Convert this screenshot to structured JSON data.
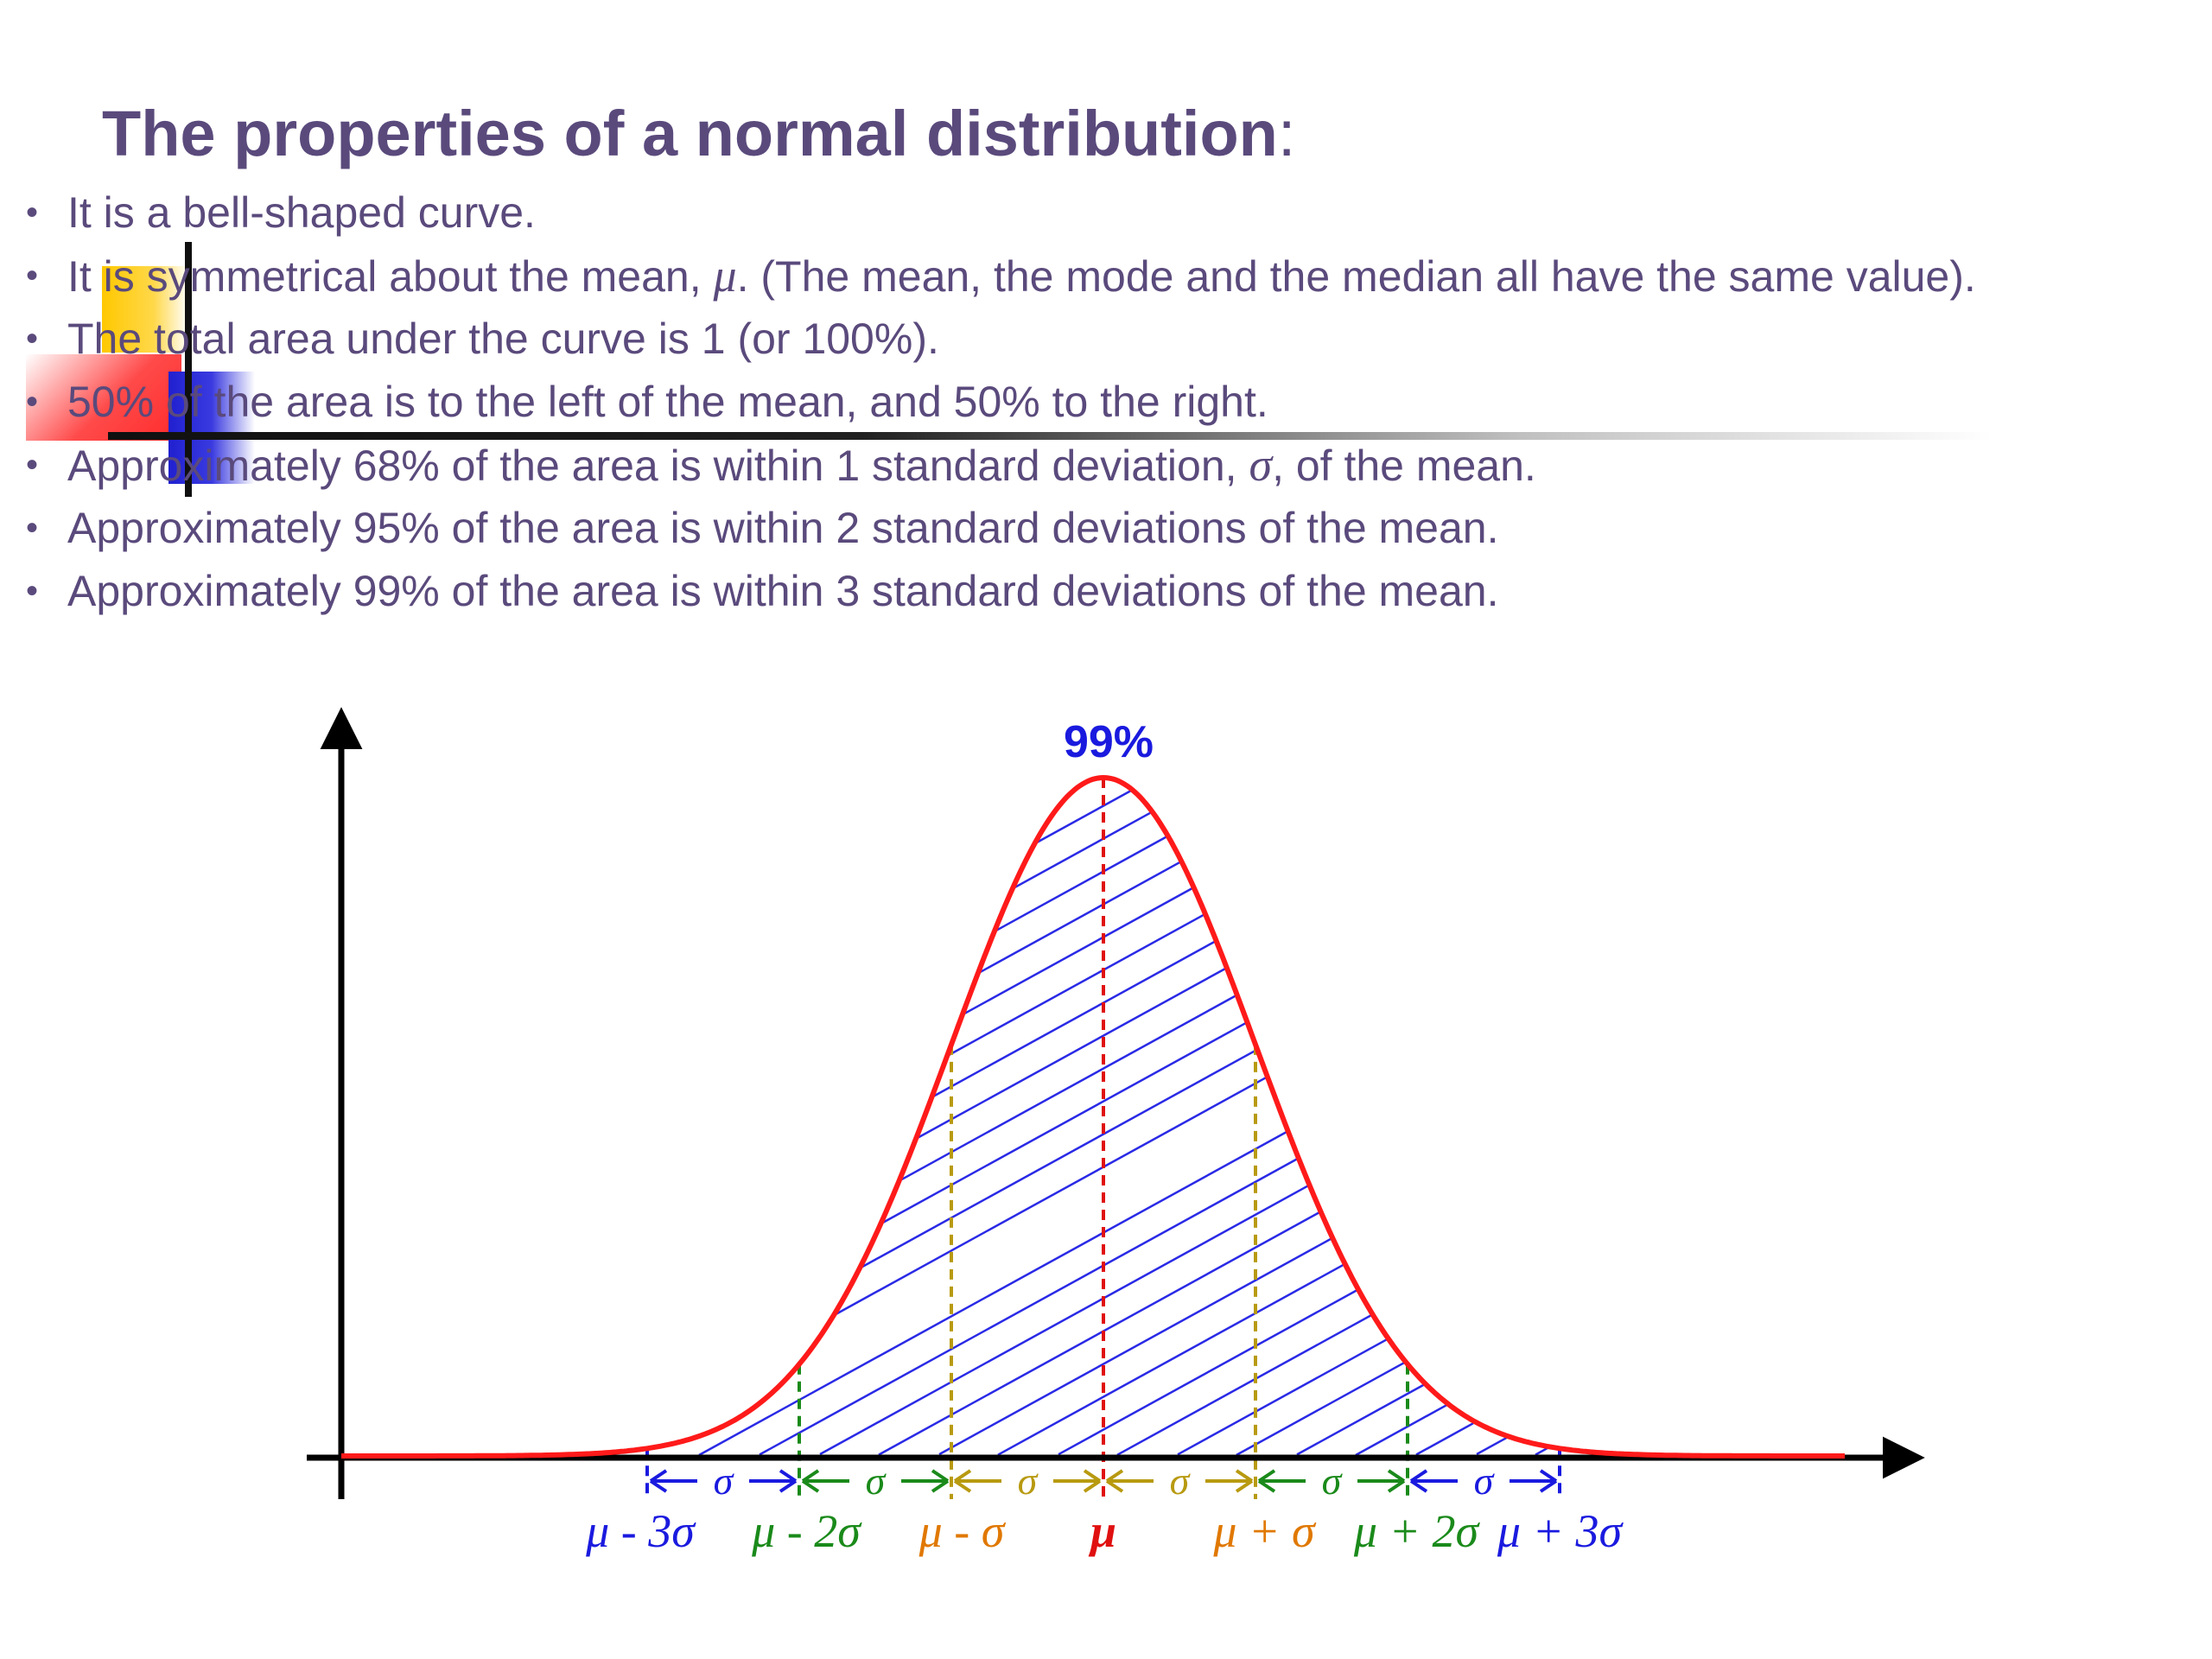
{
  "title": "The properties of a normal distribution",
  "title_colon": ":",
  "bullets": [
    {
      "text": "It is a bell-shaped curve."
    },
    {
      "pre": "It is symmetrical about the mean, ",
      "sym": "μ",
      "post": ".  (The mean, the mode and the median all have the same value)."
    },
    {
      "text": "The total area under the curve is 1 (or 100%)."
    },
    {
      "text": "50% of the area is to the left of the mean, and 50% to the right."
    },
    {
      "pre": "Approximately 68% of the area is within 1 standard deviation, ",
      "sym": "σ",
      "post": ", of the mean."
    },
    {
      "text": "Approximately 95% of the area is within 2 standard deviations of the mean."
    },
    {
      "text": "Approximately 99% of the area is within 3 standard deviations of the mean."
    }
  ],
  "diagram": {
    "peak_label": "99%",
    "sigma_label": "σ",
    "tick_labels": [
      {
        "text": "μ - 3σ",
        "color": "#1a1adf"
      },
      {
        "text": "μ - 2σ",
        "color": "#1a8a1a"
      },
      {
        "text": "μ - σ",
        "color": "#e07800"
      },
      {
        "text": "μ",
        "color": "#e01010"
      },
      {
        "text": "μ + σ",
        "color": "#e07800"
      },
      {
        "text": "μ + 2σ",
        "color": "#1a8a1a"
      },
      {
        "text": "μ + 3σ",
        "color": "#1a1adf"
      }
    ],
    "colors": {
      "curve": "#ff1a1a",
      "hatch": "#2a2ae6",
      "axis": "#000000",
      "one_sigma": "#b89a10",
      "two_sigma": "#1a8a1a",
      "three_sigma": "#1a1adf",
      "mean": "#e01010"
    }
  }
}
